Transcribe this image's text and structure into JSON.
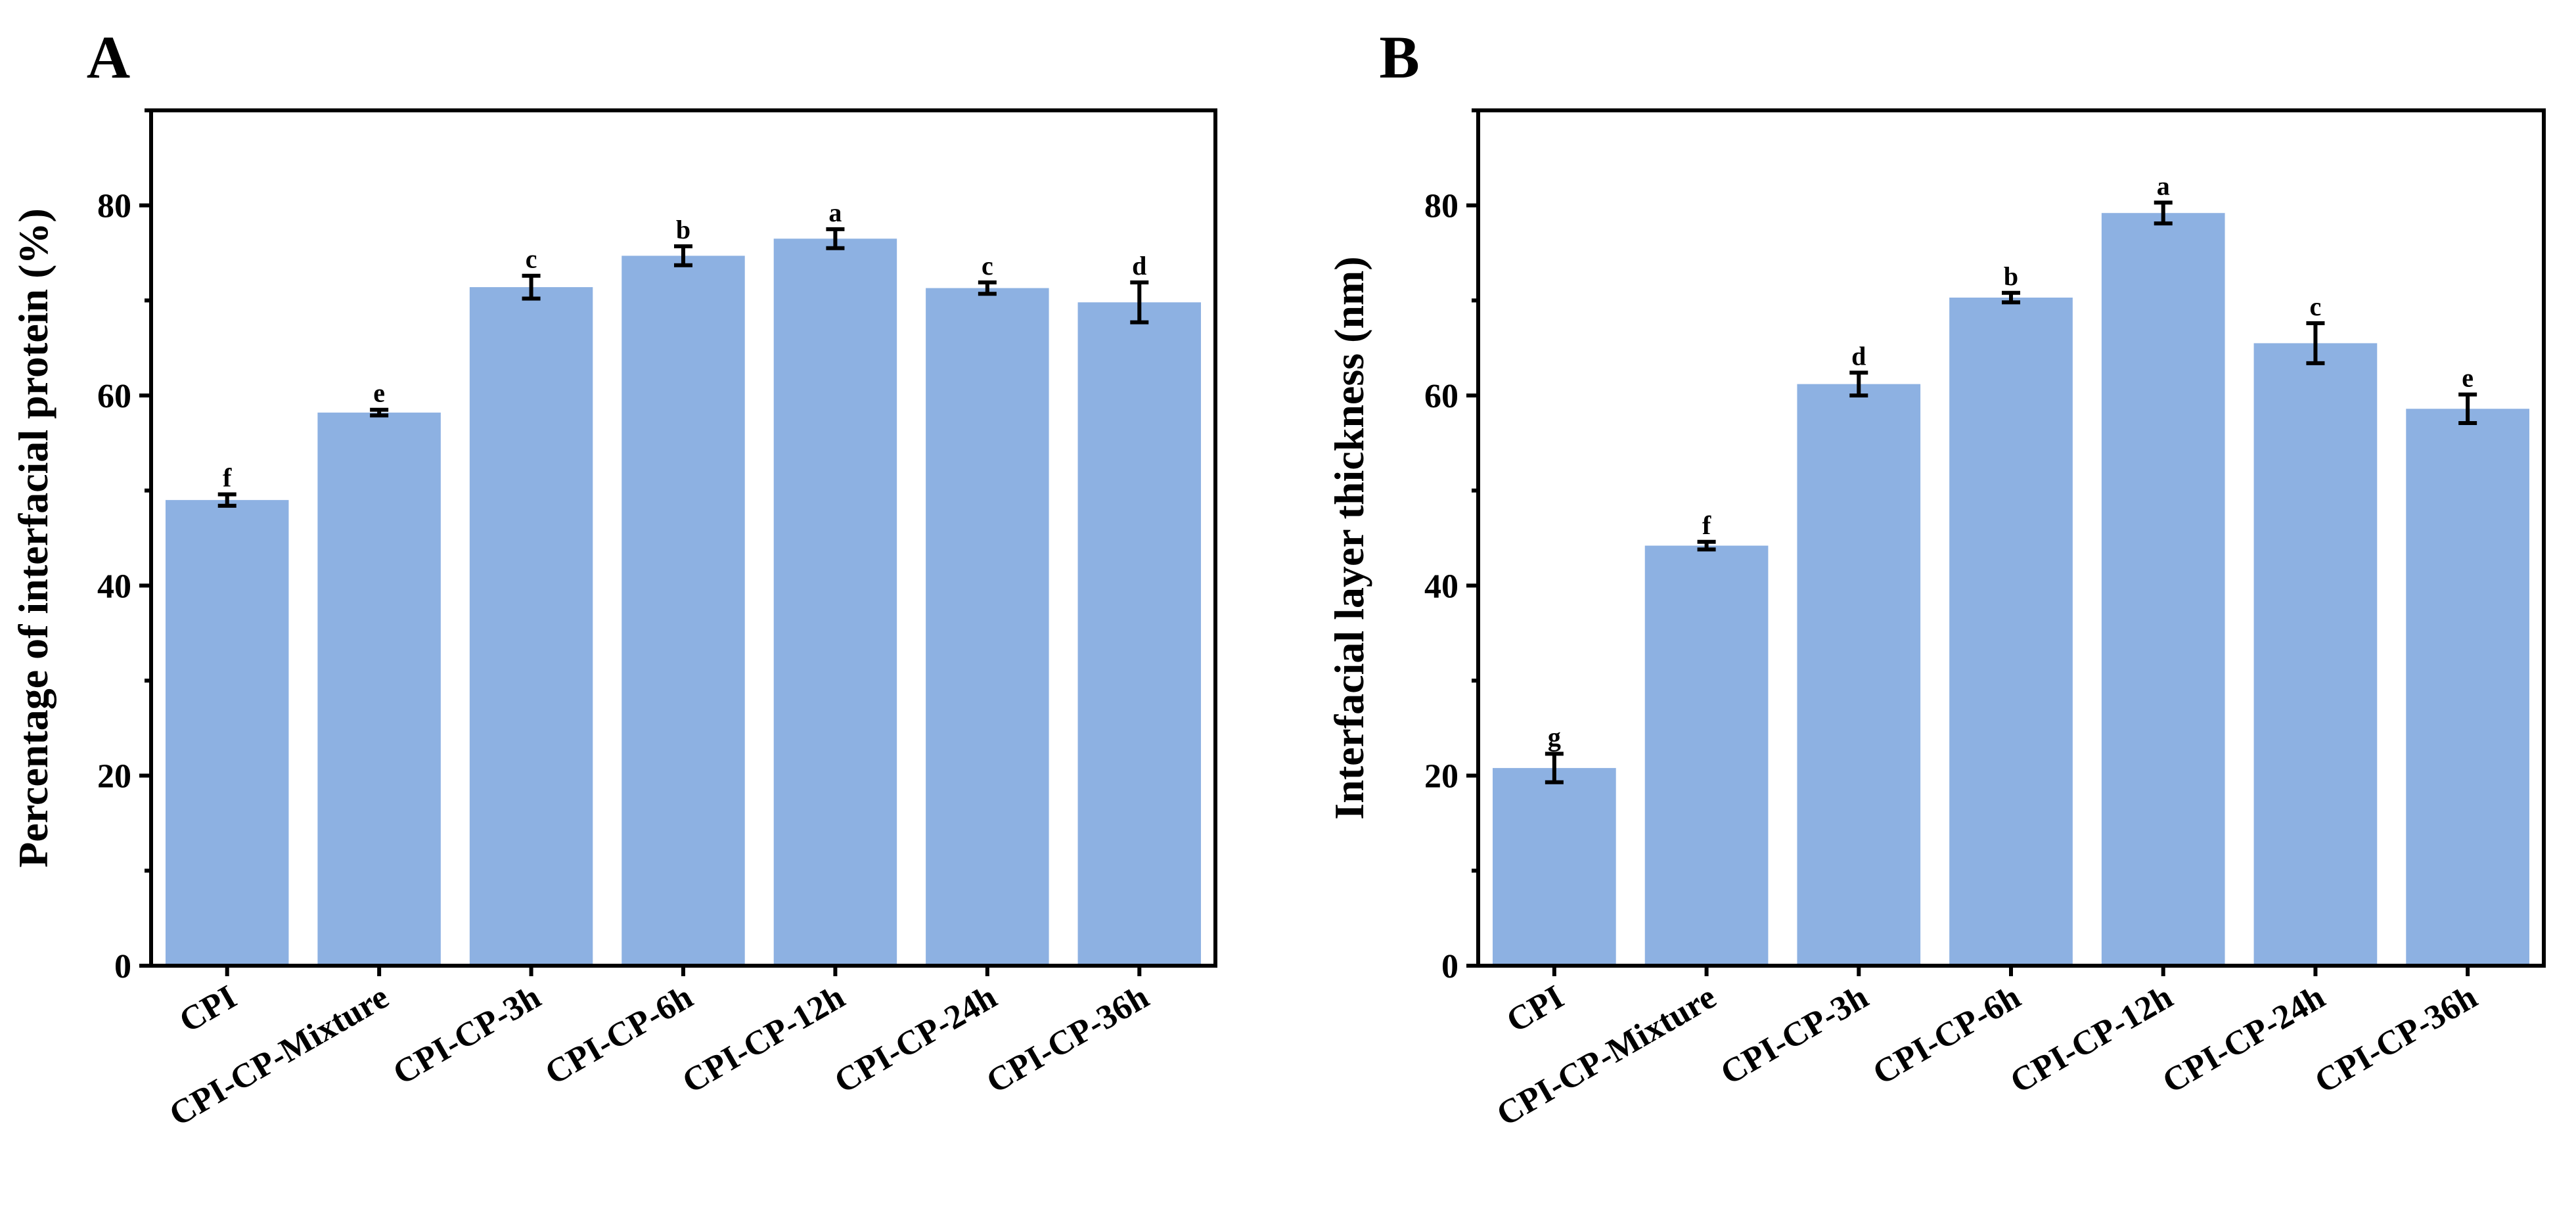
{
  "colors": {
    "bar": "#8DB1E2",
    "axis": "#000000",
    "background": "#FFFFFF"
  },
  "chart_data": [
    {
      "panel": "A",
      "type": "bar",
      "title": "",
      "xlabel": "",
      "ylabel": "Percentage of interfacial  protein (%)",
      "ylim": [
        0,
        90
      ],
      "yticks": [
        0,
        20,
        40,
        60,
        80
      ],
      "yticklabels": [
        "0",
        "20",
        "40",
        "60",
        "80"
      ],
      "categories": [
        "CPI",
        "CPI-CP-Mixture",
        "CPI-CP-3h",
        "CPI-CP-6h",
        "CPI-CP-12h",
        "CPI-CP-24h",
        "CPI-CP-36h"
      ],
      "values": [
        49.0,
        58.2,
        71.4,
        74.7,
        76.5,
        71.3,
        69.8
      ],
      "errors": [
        0.6,
        0.3,
        1.2,
        1.0,
        1.0,
        0.6,
        2.1
      ],
      "significance": [
        "f",
        "e",
        "c",
        "b",
        "a",
        "c",
        "d"
      ]
    },
    {
      "panel": "B",
      "type": "bar",
      "title": "",
      "xlabel": "",
      "ylabel": "Interfacial layer thickness  (nm)",
      "ylim": [
        0,
        90
      ],
      "yticks": [
        0,
        20,
        40,
        60,
        80
      ],
      "yticklabels": [
        "0",
        "20",
        "40",
        "60",
        "80"
      ],
      "categories": [
        "CPI",
        "CPI-CP-Mixture",
        "CPI-CP-3h",
        "CPI-CP-6h",
        "CPI-CP-12h",
        "CPI-CP-24h",
        "CPI-CP-36h"
      ],
      "values": [
        20.8,
        44.2,
        61.2,
        70.3,
        79.2,
        65.5,
        58.6
      ],
      "errors": [
        1.5,
        0.4,
        1.2,
        0.5,
        1.1,
        2.1,
        1.5
      ],
      "significance": [
        "g",
        "f",
        "d",
        "b",
        "a",
        "c",
        "e"
      ]
    }
  ]
}
